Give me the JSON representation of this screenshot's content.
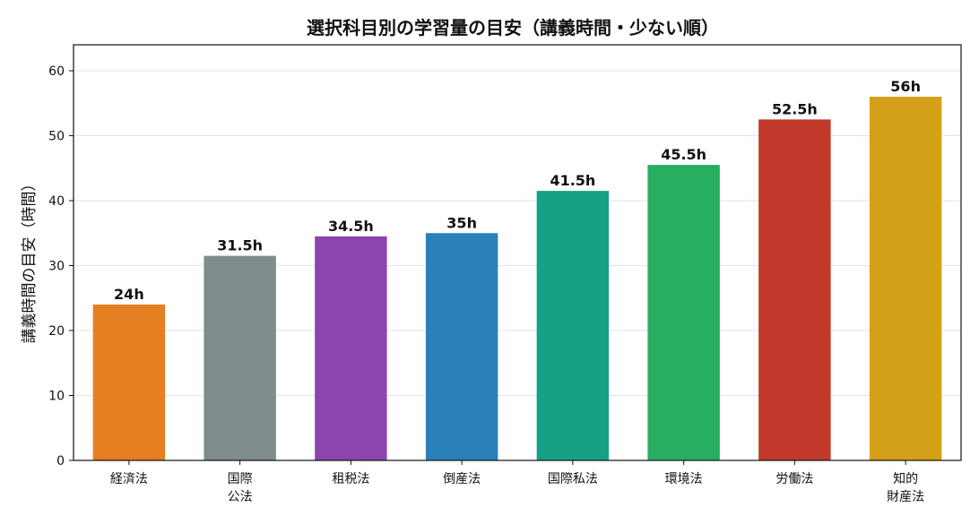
{
  "chart_data": {
    "type": "bar",
    "title": "選択科目別の学習量の目安（講義時間・少ない順）",
    "xlabel": "",
    "ylabel": "講義時間の目安（時間）",
    "categories": [
      [
        "経済法"
      ],
      [
        "国際",
        "公法"
      ],
      [
        "租税法"
      ],
      [
        "倒産法"
      ],
      [
        "国際私法"
      ],
      [
        "環境法"
      ],
      [
        "労働法"
      ],
      [
        "知的",
        "財産法"
      ]
    ],
    "values": [
      24,
      31.5,
      34.5,
      35,
      41.5,
      45.5,
      52.5,
      56
    ],
    "value_labels": [
      "24h",
      "31.5h",
      "34.5h",
      "35h",
      "41.5h",
      "45.5h",
      "52.5h",
      "56h"
    ],
    "colors": [
      "#e67e22",
      "#7f8c8d",
      "#8e44ad",
      "#2980b9",
      "#16a085",
      "#27ae60",
      "#c0392b",
      "#d4a017"
    ],
    "ylim": [
      0,
      64
    ],
    "yticks": [
      0,
      10,
      20,
      30,
      40,
      50,
      60
    ],
    "grid": true
  }
}
